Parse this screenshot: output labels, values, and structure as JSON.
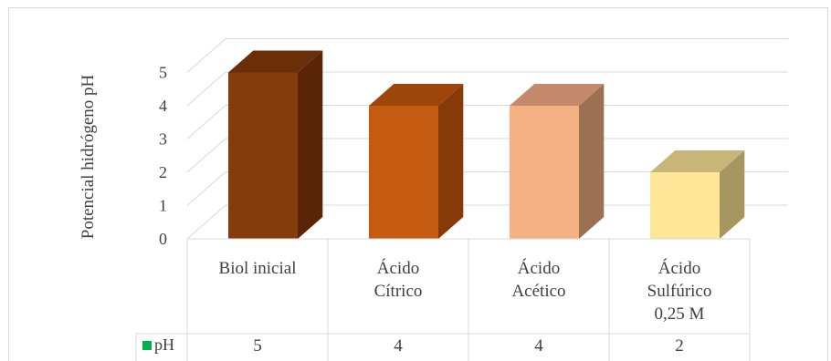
{
  "chart_data": {
    "type": "bar",
    "style": "3d-column-with-data-table",
    "ylabel": "Potencial hidrógeno pH",
    "ylim": [
      0,
      5
    ],
    "yticks": [
      "0",
      "1",
      "2",
      "3",
      "4",
      "5"
    ],
    "grid": true,
    "categories": [
      [
        "Biol inicial"
      ],
      [
        "Ácido",
        "Cítrico"
      ],
      [
        "Ácido",
        "Acético"
      ],
      [
        "Ácido",
        "Sulfúrico",
        "0,25 M"
      ]
    ],
    "series": [
      {
        "name": "pH",
        "legend_color": "#00b050",
        "values": [
          5,
          4,
          4,
          2
        ],
        "table_values": [
          "5",
          "4",
          "4",
          "2"
        ],
        "colors": [
          {
            "front": "#843c0c",
            "side": "#5a2406",
            "top": "#6a2f09"
          },
          {
            "front": "#c55a11",
            "side": "#863a07",
            "top": "#9e4509"
          },
          {
            "front": "#f4b183",
            "side": "#9c7052",
            "top": "#c4896a"
          },
          {
            "front": "#ffe699",
            "side": "#a69660",
            "top": "#c8b578"
          }
        ]
      }
    ]
  }
}
